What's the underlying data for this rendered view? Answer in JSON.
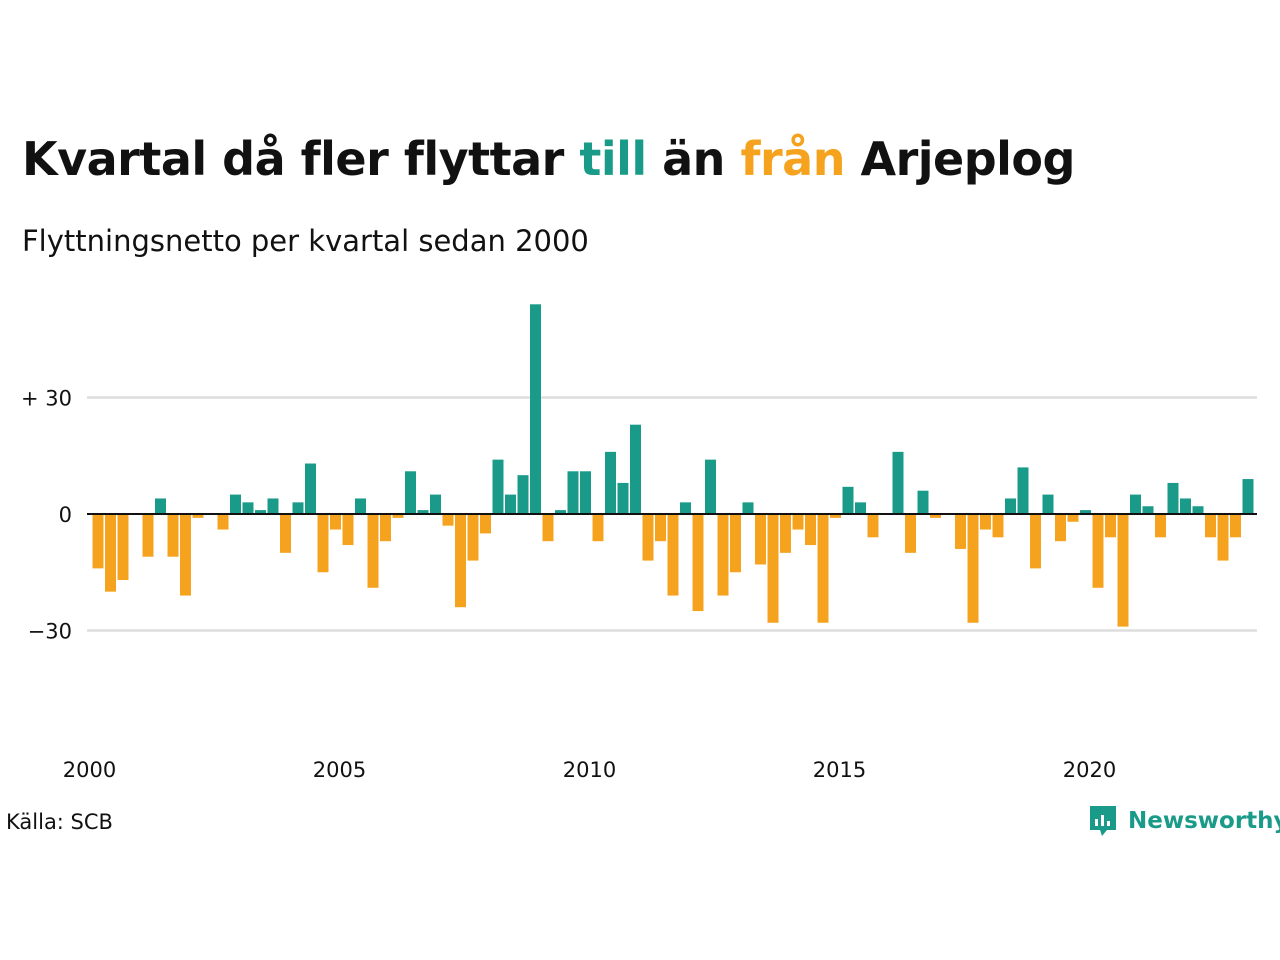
{
  "title": {
    "part1": "Kvartal då fler flyttar ",
    "word_to": "till",
    "part2": " än ",
    "word_from": "från",
    "part3": " Arjeplog"
  },
  "subtitle": "Flyttningsnetto per kvartal sedan 2000",
  "source": "Källa: SCB",
  "brand": "Newsworthy",
  "colors": {
    "positive": "#1a9b8a",
    "negative": "#f5a31e",
    "gridline": "#dddddd",
    "zero_line": "#111111",
    "text": "#111111",
    "brand": "#1a9b8a"
  },
  "chart_data": {
    "type": "bar",
    "title": "Kvartal då fler flyttar till än från Arjeplog",
    "subtitle": "Flyttningsnetto per kvartal sedan 2000",
    "x_start_year": 2000,
    "periods_per_year": 4,
    "xticks": [
      "2000",
      "2005",
      "2010",
      "2015",
      "2020"
    ],
    "yticks": [
      {
        "value": 30,
        "label": "+ 30"
      },
      {
        "value": 0,
        "label": "0"
      },
      {
        "value": -30,
        "label": "−30"
      }
    ],
    "ylim": [
      -50,
      55
    ],
    "grid": true,
    "values": [
      -14,
      -20,
      -17,
      0,
      -11,
      4,
      -11,
      -21,
      -1,
      0,
      -4,
      5,
      3,
      1,
      4,
      -10,
      3,
      13,
      -15,
      -4,
      -8,
      4,
      -19,
      -7,
      -1,
      11,
      1,
      5,
      -3,
      -24,
      -12,
      -5,
      14,
      5,
      10,
      54,
      -7,
      1,
      11,
      11,
      -7,
      16,
      8,
      23,
      -12,
      -7,
      -21,
      3,
      -25,
      14,
      -21,
      -15,
      3,
      -13,
      -28,
      -10,
      -4,
      -8,
      -28,
      -1,
      7,
      3,
      -6,
      0,
      16,
      -10,
      6,
      -1,
      0,
      -9,
      -28,
      -4,
      -6,
      4,
      12,
      -14,
      5,
      -7,
      -2,
      1,
      -19,
      -6,
      -29,
      5,
      2,
      -6,
      8,
      4,
      2,
      -6,
      -12,
      -6,
      9
    ]
  }
}
